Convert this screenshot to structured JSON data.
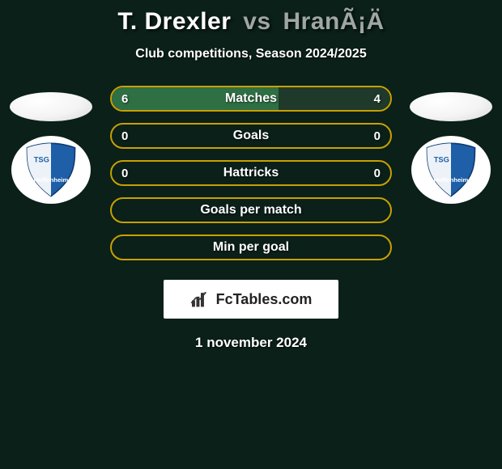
{
  "title": {
    "player1": "T. Drexler",
    "vs": "vs",
    "player2": "HranÃ¡Ä",
    "player1_color": "#ffffff",
    "player2_color": "#9fa6a3",
    "fontsize": 30
  },
  "subtitle": "Club competitions, Season 2024/2025",
  "comparison": {
    "border_color_filled": "#c9a000",
    "border_color_empty": "#c9a000",
    "fill_color_p1": "#2f6f44",
    "fill_color_p2": "#1f3a2a",
    "empty_fill": "transparent",
    "label_color": "#ffffff",
    "rows": [
      {
        "label": "Matches",
        "v1": "6",
        "v2": "4",
        "p1_pct": 60,
        "p2_pct": 40,
        "filled": true
      },
      {
        "label": "Goals",
        "v1": "0",
        "v2": "0",
        "p1_pct": 0,
        "p2_pct": 0,
        "filled": false
      },
      {
        "label": "Hattricks",
        "v1": "0",
        "v2": "0",
        "p1_pct": 0,
        "p2_pct": 0,
        "filled": false
      },
      {
        "label": "Goals per match",
        "v1": "",
        "v2": "",
        "p1_pct": 0,
        "p2_pct": 0,
        "filled": false
      },
      {
        "label": "Min per goal",
        "v1": "",
        "v2": "",
        "p1_pct": 0,
        "p2_pct": 0,
        "filled": false
      }
    ]
  },
  "brand": {
    "text": "FcTables.com"
  },
  "date": "1 november 2024",
  "club_badge": {
    "line1": "TSG 1899",
    "line2": "Hoffenheim",
    "blue": "#1e5fa8",
    "white": "#ffffff"
  },
  "background_color": "#0a2018"
}
